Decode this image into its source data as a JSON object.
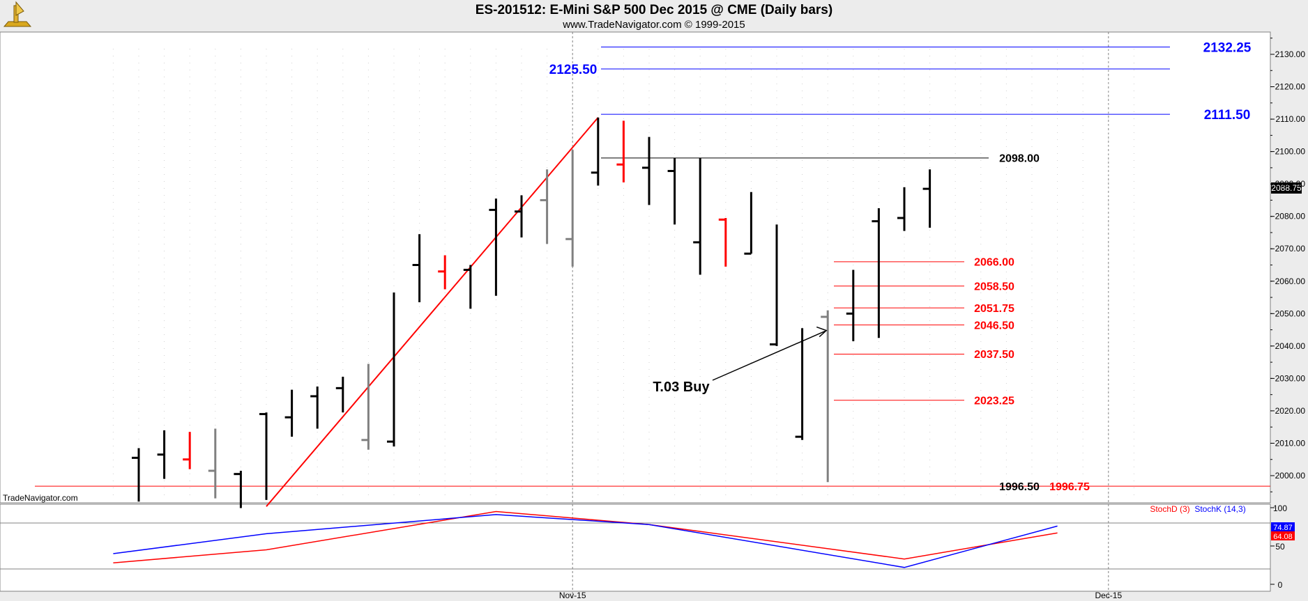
{
  "header": {
    "title": "ES-201512:  E-Mini S&P 500 Dec 2015 @ CME  (Daily bars)",
    "subtitle": "www.TradeNavigator.com © 1999-2015"
  },
  "watermark": "TradeNavigator.com",
  "colors": {
    "background": "#ffffff",
    "frame": "#ececec",
    "up_bar": "#000000",
    "inside_bar": "#808080",
    "down_bar": "#ff0000",
    "blue_level": "#0000ff",
    "red_level": "#ff0000",
    "black_level": "#000000",
    "stoch_d": "#ff0000",
    "stoch_k": "#0000ff"
  },
  "chart_data": [
    {
      "type": "ohlc",
      "name": "price",
      "y_axis": "right",
      "ylim": [
        1990,
        2138
      ],
      "yticks": [
        "2000.00",
        "2010.00",
        "2020.00",
        "2030.00",
        "2040.00",
        "2050.00",
        "2060.00",
        "2070.00",
        "2080.00",
        "2090.00",
        "2100.00",
        "2110.00",
        "2120.00",
        "2130.00"
      ],
      "x_labels": [
        {
          "label": "Nov-15",
          "bar_index": 17
        },
        {
          "label": "Dec-15",
          "bar_index": 38
        }
      ],
      "bars": [
        {
          "h": 2008.5,
          "l": 1992.0,
          "c": 2005.5,
          "color": "up"
        },
        {
          "h": 2014.0,
          "l": 1999.0,
          "c": 2006.5,
          "color": "up"
        },
        {
          "h": 2013.5,
          "l": 2002.0,
          "c": 2005.0,
          "color": "down"
        },
        {
          "h": 2014.5,
          "l": 1993.0,
          "c": 2001.5,
          "color": "inside"
        },
        {
          "h": 2001.5,
          "l": 1990.0,
          "c": 2000.5,
          "color": "up"
        },
        {
          "h": 2019.5,
          "l": 1992.5,
          "c": 2019.0,
          "color": "up"
        },
        {
          "h": 2026.5,
          "l": 2012.0,
          "c": 2018.0,
          "color": "up"
        },
        {
          "h": 2027.5,
          "l": 2014.5,
          "c": 2024.5,
          "color": "up"
        },
        {
          "h": 2030.5,
          "l": 2019.5,
          "c": 2027.0,
          "color": "up"
        },
        {
          "h": 2034.5,
          "l": 2008.0,
          "c": 2011.0,
          "color": "inside"
        },
        {
          "h": 2056.5,
          "l": 2009.0,
          "c": 2010.5,
          "color": "up"
        },
        {
          "h": 2074.5,
          "l": 2053.5,
          "c": 2065.0,
          "color": "up"
        },
        {
          "h": 2068.0,
          "l": 2057.5,
          "c": 2063.0,
          "color": "down"
        },
        {
          "h": 2065.0,
          "l": 2051.5,
          "c": 2063.5,
          "color": "up"
        },
        {
          "h": 2085.5,
          "l": 2055.5,
          "c": 2082.0,
          "color": "up"
        },
        {
          "h": 2086.5,
          "l": 2073.5,
          "c": 2081.5,
          "color": "up"
        },
        {
          "h": 2094.5,
          "l": 2071.5,
          "c": 2085.0,
          "color": "inside"
        },
        {
          "h": 2100.5,
          "l": 2064.5,
          "c": 2073.0,
          "color": "inside"
        },
        {
          "h": 2110.5,
          "l": 2089.5,
          "c": 2093.5,
          "color": "up"
        },
        {
          "h": 2109.5,
          "l": 2090.5,
          "c": 2096.0,
          "color": "down"
        },
        {
          "h": 2104.5,
          "l": 2083.5,
          "c": 2095.0,
          "color": "up"
        },
        {
          "h": 2098.0,
          "l": 2077.5,
          "c": 2094.0,
          "color": "up"
        },
        {
          "h": 2098.0,
          "l": 2062.0,
          "c": 2072.0,
          "color": "up"
        },
        {
          "h": 2079.5,
          "l": 2064.5,
          "c": 2079.0,
          "color": "down"
        },
        {
          "h": 2087.5,
          "l": 2068.5,
          "c": 2068.5,
          "color": "up"
        },
        {
          "h": 2077.5,
          "l": 2040.0,
          "c": 2040.5,
          "color": "up"
        },
        {
          "h": 2045.5,
          "l": 2011.0,
          "c": 2012.0,
          "color": "up"
        },
        {
          "h": 2051.0,
          "l": 1998.0,
          "c": 2049.0,
          "color": "inside"
        },
        {
          "h": 2063.5,
          "l": 2041.5,
          "c": 2050.0,
          "color": "up"
        },
        {
          "h": 2082.5,
          "l": 2042.5,
          "c": 2078.5,
          "color": "up"
        },
        {
          "h": 2089.0,
          "l": 2075.5,
          "c": 2079.5,
          "color": "up"
        },
        {
          "h": 2094.5,
          "l": 2076.5,
          "c": 2088.5,
          "color": "up"
        }
      ],
      "levels": [
        {
          "price": 2132.25,
          "label": "2132.25",
          "color": "blue"
        },
        {
          "price": 2125.5,
          "label": "2125.50",
          "color": "blue"
        },
        {
          "price": 2111.5,
          "label": "2111.50",
          "color": "blue"
        },
        {
          "price": 2098.0,
          "label": "2098.00",
          "color": "black"
        },
        {
          "price": 2066.0,
          "label": "2066.00",
          "color": "red"
        },
        {
          "price": 2058.5,
          "label": "2058.50",
          "color": "red"
        },
        {
          "price": 2051.75,
          "label": "2051.75",
          "color": "red"
        },
        {
          "price": 2046.5,
          "label": "2046.50",
          "color": "red"
        },
        {
          "price": 2037.5,
          "label": "2037.50",
          "color": "red"
        },
        {
          "price": 2023.25,
          "label": "2023.25",
          "color": "red"
        },
        {
          "price": 1996.75,
          "label": "1996.75",
          "color": "red"
        }
      ],
      "extra_labels": [
        {
          "label": "1996.50",
          "color": "black"
        }
      ],
      "trendline": {
        "from": {
          "bar_index": 5,
          "price": 1990.5
        },
        "to": {
          "bar_index": 18,
          "price": 2110.5
        },
        "color": "red"
      },
      "annotation": {
        "text": "T.03 Buy",
        "points_to": {
          "bar_index": 27,
          "price": 2045.0
        }
      },
      "last_price": "2088.75"
    },
    {
      "type": "line",
      "name": "stochastic",
      "ylim": [
        0,
        100
      ],
      "yticks": [
        "0",
        "50",
        "100"
      ],
      "legend": [
        "StochD (3)",
        "StochK (14,3)"
      ],
      "ref_lines": [
        80,
        20
      ],
      "series": [
        {
          "name": "StochD (3)",
          "color": "red",
          "x": [
            -1,
            5,
            14,
            20,
            30,
            36
          ],
          "values": [
            28,
            45,
            95,
            78,
            33,
            67
          ]
        },
        {
          "name": "StochK (14,3)",
          "color": "blue",
          "x": [
            -1,
            5,
            14,
            20,
            30,
            36
          ],
          "values": [
            40,
            66,
            91,
            78,
            22,
            76
          ]
        }
      ],
      "last_values": [
        "74.87",
        "64.08"
      ]
    }
  ]
}
